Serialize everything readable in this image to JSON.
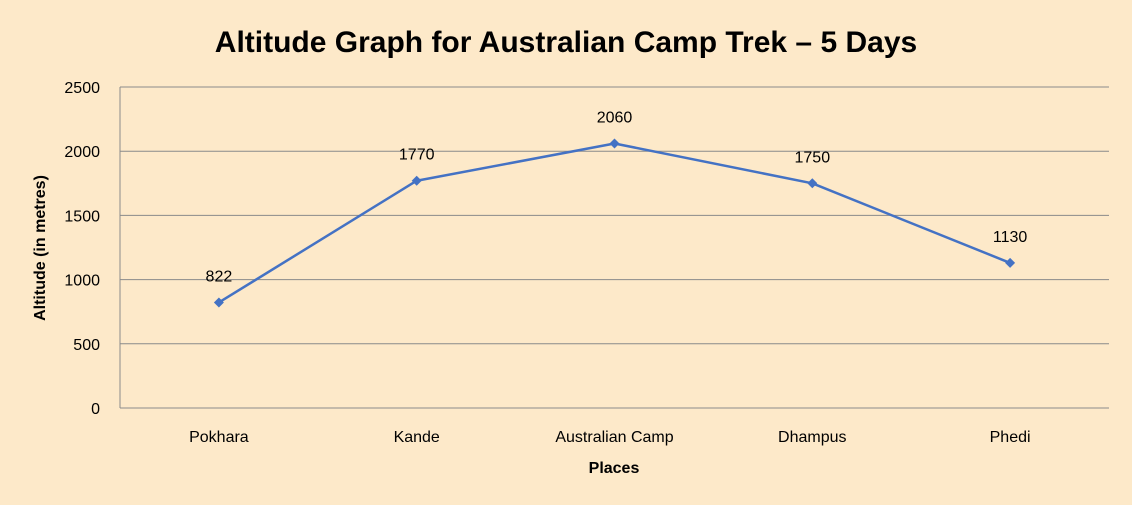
{
  "chart_data": {
    "type": "line",
    "title": "Altitude Graph for Australian Camp Trek – 5 Days",
    "xlabel": "Places",
    "ylabel": "Altitude (in metres)",
    "categories": [
      "Pokhara",
      "Kande",
      "Australian Camp",
      "Dhampus",
      "Phedi"
    ],
    "series": [
      {
        "values": [
          822,
          1770,
          2060,
          1750,
          1130
        ],
        "color": "#4472c4",
        "marker": "diamond"
      }
    ],
    "data_labels": [
      "822",
      "1770",
      "2060",
      "1750",
      "1130"
    ],
    "ylim": [
      0,
      2500
    ],
    "yticks": [
      0,
      500,
      1000,
      1500,
      2000,
      2500
    ],
    "ytick_labels": [
      "0",
      "500",
      "1000",
      "1500",
      "2000",
      "2500"
    ],
    "grid": true,
    "legend": "none",
    "background": "#fde9c9"
  }
}
